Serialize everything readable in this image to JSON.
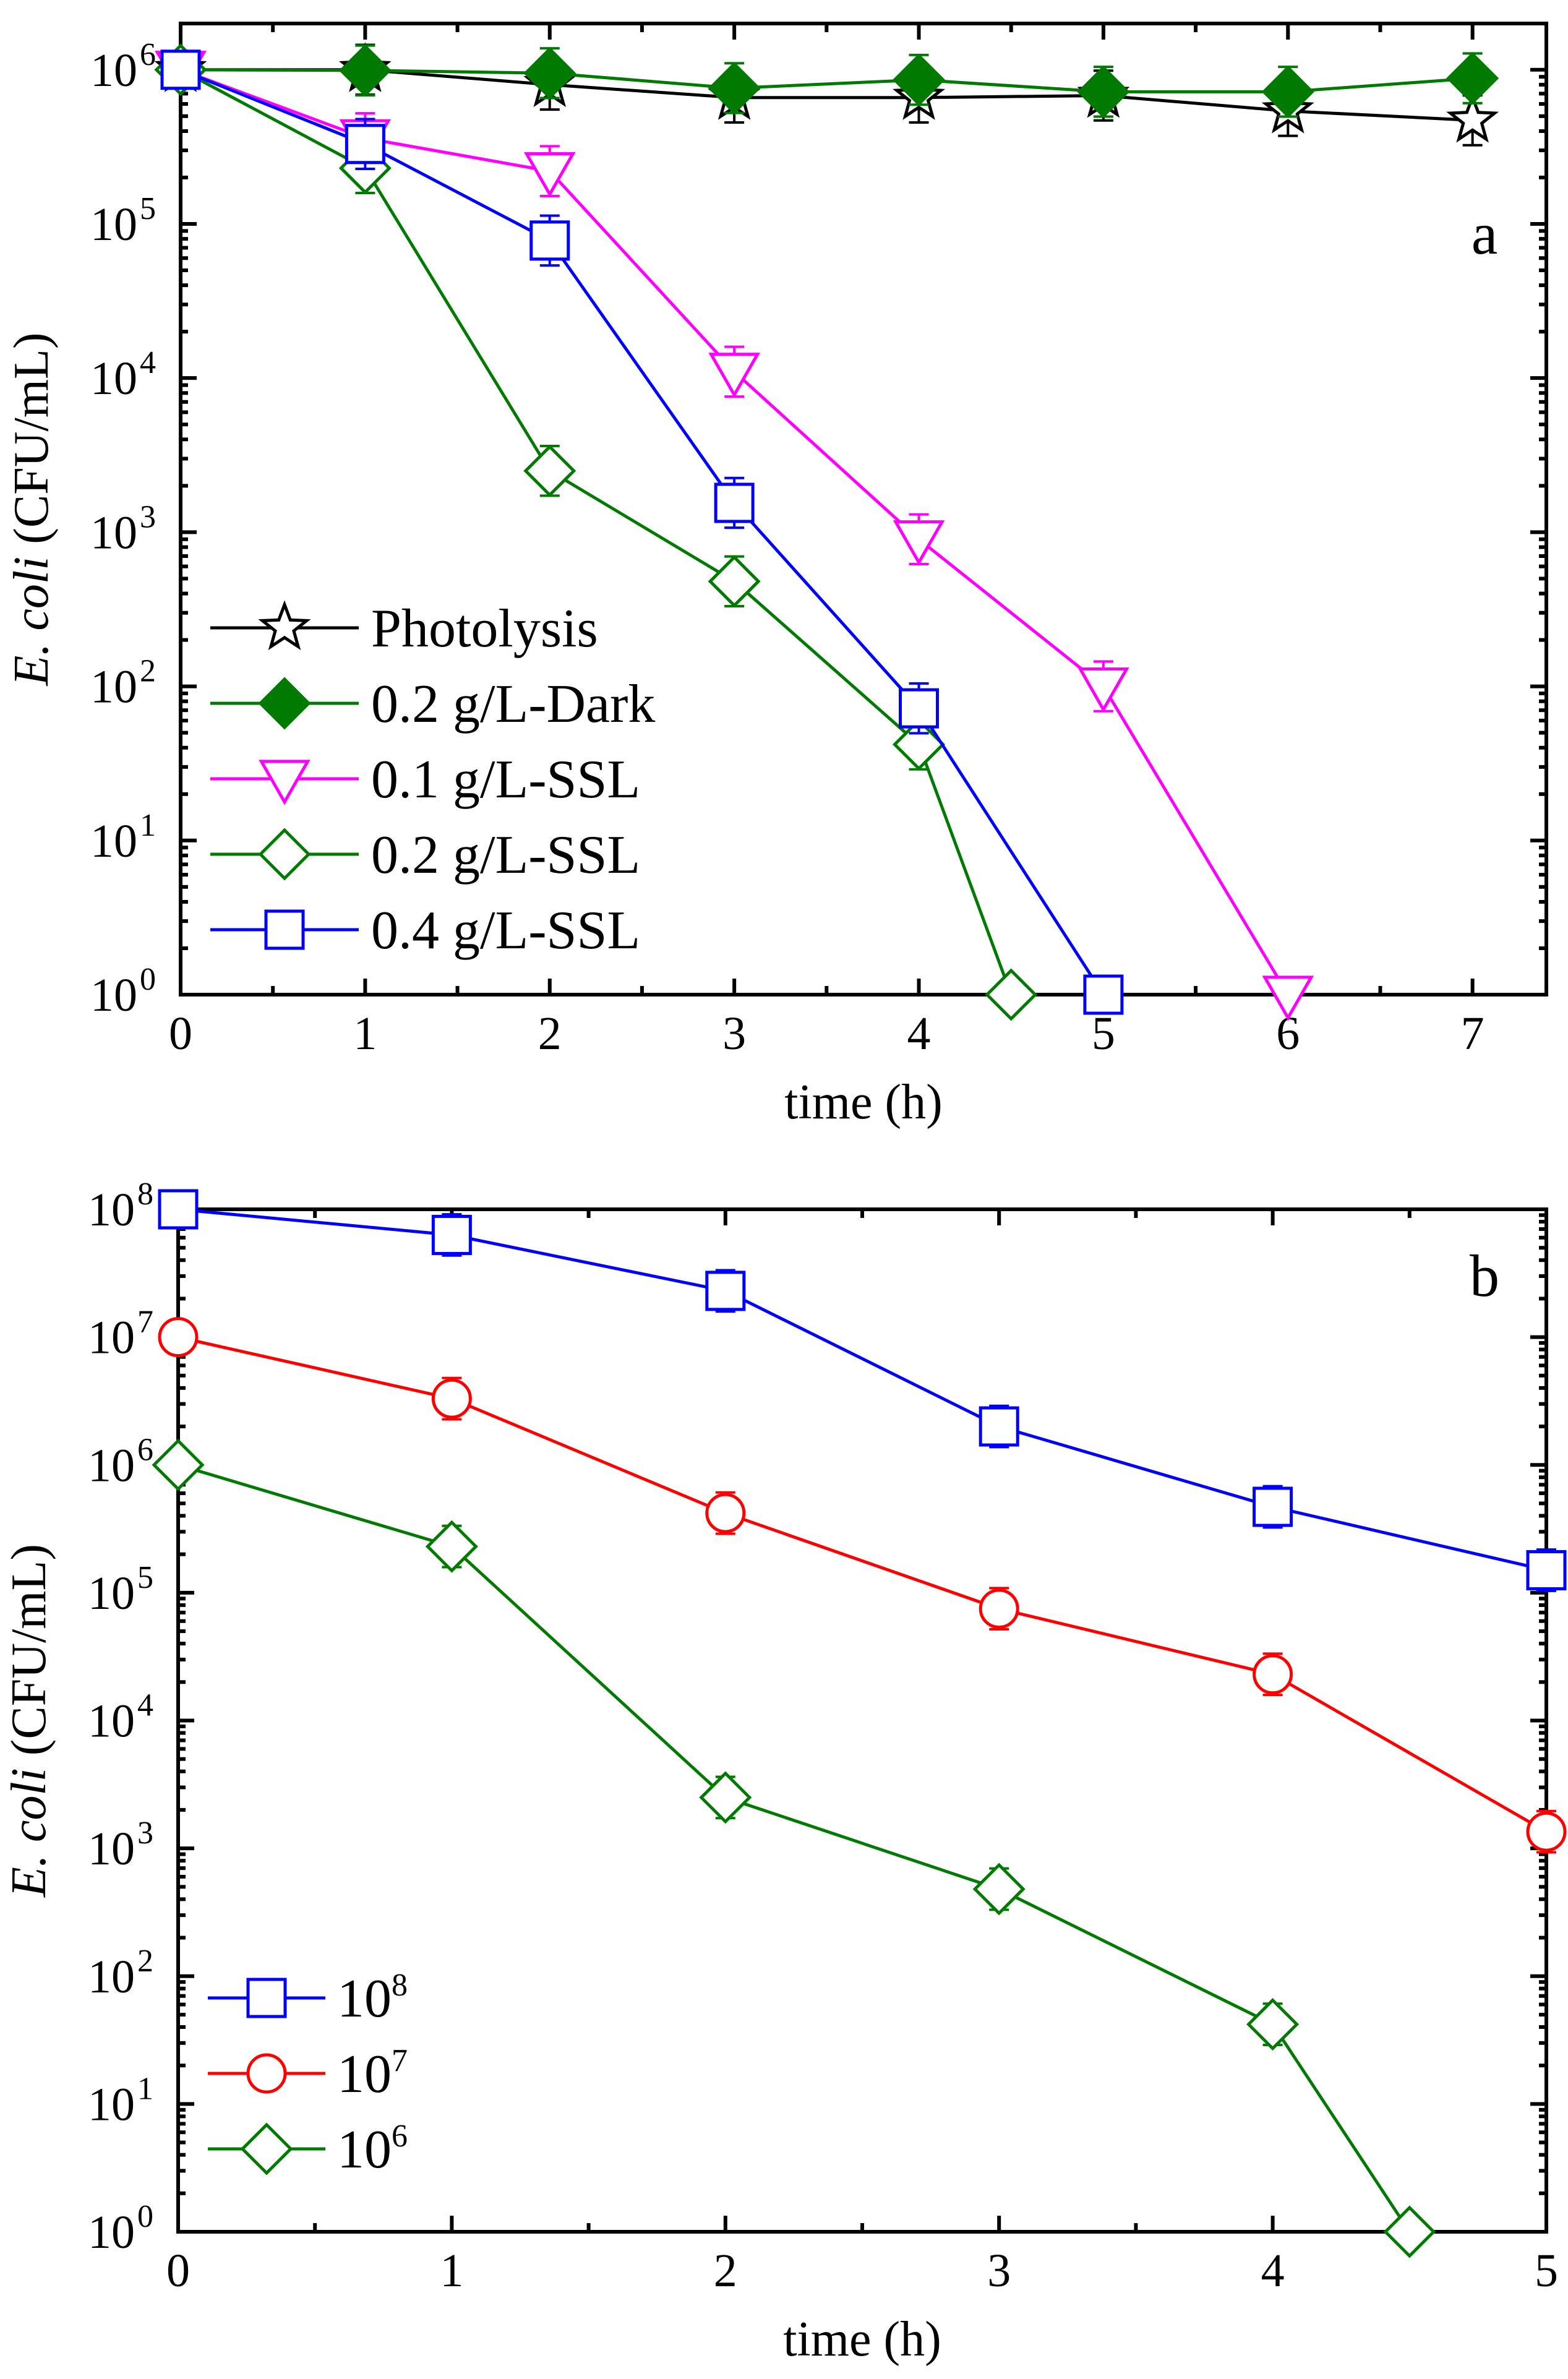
{
  "chart_data": [
    {
      "type": "line",
      "panel_label": "a",
      "xlabel": "time (h)",
      "ylabel_italic": "E. coli",
      "ylabel_rest": " (CFU/mL)",
      "xlim": [
        0,
        7.4
      ],
      "ylim_log10": [
        0,
        6.3
      ],
      "xticks": [
        "0",
        "1",
        "2",
        "3",
        "4",
        "5",
        "6",
        "7"
      ],
      "yticks_exp": [
        "0",
        "1",
        "2",
        "3",
        "4",
        "5",
        "6"
      ],
      "ytick_base": "10",
      "legend_position": "lower-left",
      "series": [
        {
          "name": "Photolysis",
          "color": "#000000",
          "marker": "star",
          "filled": false,
          "x": [
            0,
            1,
            2,
            3,
            4,
            5,
            6,
            7
          ],
          "y": [
            1000000,
            1000000,
            800000,
            660000,
            660000,
            680000,
            540000,
            470000
          ]
        },
        {
          "name": "0.2 g/L-Dark",
          "color": "#007a00",
          "marker": "diamond",
          "filled": true,
          "x": [
            0,
            1,
            2,
            3,
            4,
            5,
            6,
            7
          ],
          "y": [
            1000000,
            990000,
            950000,
            760000,
            860000,
            720000,
            720000,
            880000
          ]
        },
        {
          "name": "0.1 g/L-SSL",
          "color": "#ff00ff",
          "marker": "triangle-down",
          "filled": false,
          "x": [
            0,
            1,
            2,
            3,
            4,
            5,
            6
          ],
          "y": [
            1000000,
            360000,
            220000,
            11000,
            900,
            100,
            1
          ]
        },
        {
          "name": "0.2 g/L-SSL",
          "color": "#007a00",
          "marker": "diamond",
          "filled": false,
          "x": [
            0,
            1,
            2,
            3,
            4,
            4.5
          ],
          "y": [
            1000000,
            230000,
            2500,
            480,
            42,
            1
          ]
        },
        {
          "name": "0.4 g/L-SSL",
          "color": "#0000ff",
          "marker": "square",
          "filled": false,
          "x": [
            0,
            1,
            2,
            3,
            4,
            5
          ],
          "y": [
            1000000,
            330000,
            78000,
            1550,
            72,
            1
          ]
        }
      ]
    },
    {
      "type": "line",
      "panel_label": "b",
      "xlabel": "time (h)",
      "ylabel_italic": "E. coli",
      "ylabel_rest": " (CFU/mL)",
      "xlim": [
        0,
        5
      ],
      "ylim_log10": [
        0,
        8
      ],
      "xticks": [
        "0",
        "1",
        "2",
        "3",
        "4",
        "5"
      ],
      "yticks_exp": [
        "0",
        "1",
        "2",
        "3",
        "4",
        "5",
        "6",
        "7",
        "8"
      ],
      "ytick_base": "10",
      "legend_position": "lower-left",
      "series": [
        {
          "name": "10",
          "name_exp": "8",
          "color": "#0000ff",
          "marker": "square",
          "filled": false,
          "x": [
            0,
            1,
            2,
            3,
            4,
            5
          ],
          "y": [
            100000000,
            63000000,
            23000000,
            2000000,
            470000,
            150000
          ]
        },
        {
          "name": "10",
          "name_exp": "7",
          "color": "#ff0000",
          "marker": "circle",
          "filled": false,
          "x": [
            0,
            1,
            2,
            3,
            4,
            5
          ],
          "y": [
            10000000,
            3300000,
            420000,
            75000,
            23000,
            1350
          ]
        },
        {
          "name": "10",
          "name_exp": "6",
          "color": "#007a00",
          "marker": "diamond",
          "filled": false,
          "x": [
            0,
            1,
            2,
            3,
            4,
            4.5
          ],
          "y": [
            1000000,
            230000,
            2500,
            480,
            42,
            1
          ]
        }
      ]
    }
  ]
}
